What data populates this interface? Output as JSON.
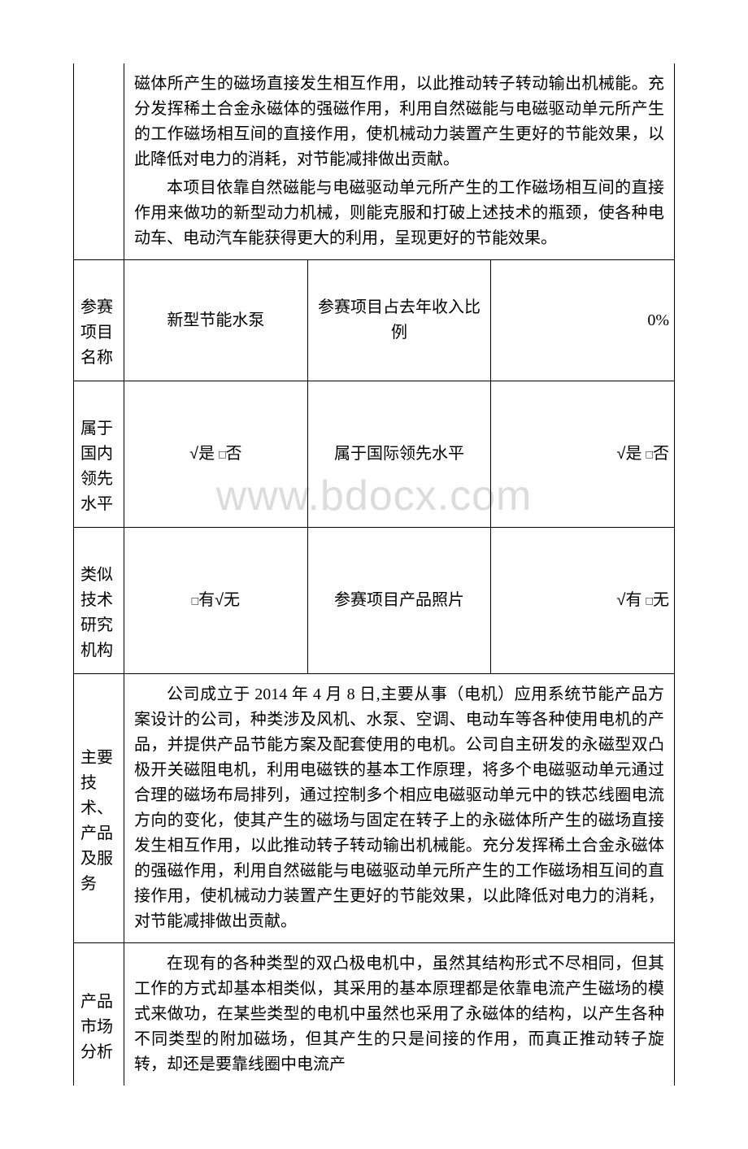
{
  "watermark": "www.bdocx.com",
  "rows": {
    "intro": {
      "para1": "磁体所产生的磁场直接发生相互作用，以此推动转子转动输出机械能。充分发挥稀土合金永磁体的强磁作用，利用自然磁能与电磁驱动单元所产生的工作磁场相互间的直接作用，使机械动力装置产生更好的节能效果，以此降低对电力的消耗，对节能减排做出贡献。",
      "para2": "本项目依靠自然磁能与电磁驱动单元所产生的工作磁场相互间的直接作用来做功的新型动力机械，则能克服和打破上述技术的瓶颈，使各种电动车、电动汽车能获得更大的利用，呈现更好的节能效果。"
    },
    "project": {
      "label": "参赛项目名称",
      "val1": "新型节能水泵",
      "val2": "参赛项目占去年收入比例",
      "val3": "0%"
    },
    "domestic": {
      "label": "属于国内领先水平",
      "val1": "√是 □否",
      "val2": "属于国际领先水平",
      "val3": "√是 □否"
    },
    "similar": {
      "label": "类似技术研究机构",
      "val1": "□有√无",
      "val2": "参赛项目产品照片",
      "val3": "√有 □无"
    },
    "tech": {
      "label": "主要技术、产品及服务",
      "text": "公司成立于 2014 年 4 月 8 日,主要从事（电机）应用系统节能产品方案设计的公司，种类涉及风机、水泵、空调、电动车等各种使用电机的产品，并提供产品节能方案及配套使用的电机。公司自主研发的永磁型双凸极开关磁阻电机，利用电磁铁的基本工作原理，将多个电磁驱动单元通过合理的磁场布局排列，通过控制多个相应电磁驱动单元中的铁芯线圈电流方向的变化，使其产生的磁场与固定在转子上的永磁体所产生的磁场直接发生相互作用，以此推动转子转动输出机械能。充分发挥稀土合金永磁体的强磁作用，利用自然磁能与电磁驱动单元所产生的工作磁场相互间的直接作用，使机械动力装置产生更好的节能效果，以此降低对电力的消耗，对节能减排做出贡献。"
    },
    "market": {
      "label": "产品市场分析",
      "text": "在现有的各种类型的双凸极电机中，虽然其结构形式不尽相同，但其工作的方式却基本相类似，其采用的基本原理都是依靠电流产生磁场的模式来做功，在某些类型的电机中虽然也采用了永磁体的结构，以产生各种不同类型的附加磁场，但其产生的只是间接的作用，而真正推动转子旋转，却还是要靠线圈中电流产"
    }
  }
}
